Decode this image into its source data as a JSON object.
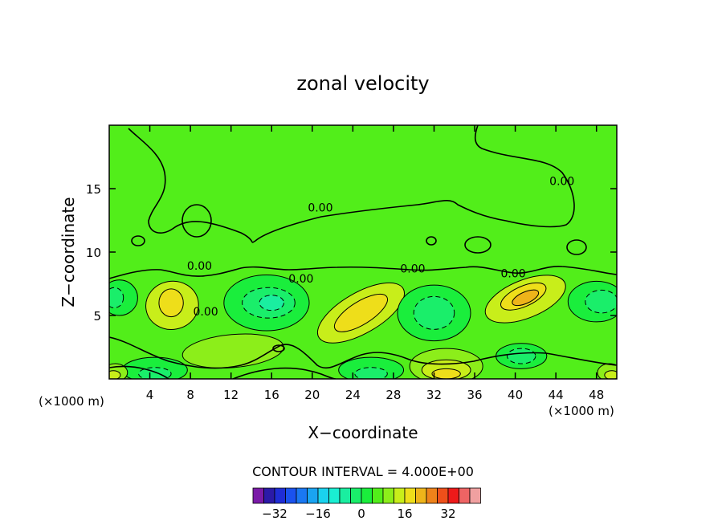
{
  "chart_data": {
    "type": "contour",
    "title": "zonal velocity",
    "xlabel": "X−coordinate",
    "ylabel": "Z−coordinate",
    "x_unit_left": "(×1000 m)",
    "x_unit_right": "(×1000 m)",
    "xlim": [
      0,
      50
    ],
    "ylim": [
      0,
      20
    ],
    "x_ticks": [
      4,
      8,
      12,
      16,
      20,
      24,
      28,
      32,
      36,
      40,
      44,
      48
    ],
    "x_tick_labels": [
      "4",
      "8",
      "12",
      "16",
      "20",
      "24",
      "28",
      "32",
      "36",
      "40",
      "44",
      "48"
    ],
    "y_ticks": [
      5,
      10,
      15
    ],
    "y_tick_labels": [
      "5",
      "10",
      "15"
    ],
    "background_level": 4,
    "contour_label": "0.00",
    "contour_label_positions": [
      [
        20.8,
        13.2
      ],
      [
        8.9,
        8.6
      ],
      [
        18.9,
        7.6
      ],
      [
        29.9,
        8.4
      ],
      [
        39.8,
        8.0
      ],
      [
        44.6,
        15.3
      ],
      [
        9.5,
        5.0
      ]
    ],
    "contour_interval_text": "CONTOUR INTERVAL = 4.000E+00",
    "colorbar": {
      "levels": [
        -36,
        -32,
        -28,
        -24,
        -20,
        -16,
        -12,
        -8,
        -4,
        0,
        4,
        8,
        12,
        16,
        20,
        24,
        28,
        32,
        36
      ],
      "colors": [
        "#7a1aa8",
        "#2b1aa8",
        "#1f2dd6",
        "#1a52ee",
        "#1a78f2",
        "#1aa4f2",
        "#1ad2ee",
        "#1aeed2",
        "#1aeea0",
        "#1aee6a",
        "#1aee3c",
        "#52ee1a",
        "#8cee1a",
        "#c8ee1a",
        "#eede1a",
        "#eeb41a",
        "#ee821a",
        "#ee501a",
        "#ee1a1a",
        "#ee6464",
        "#f0a0a0"
      ],
      "tick_labels": [
        "−32",
        "−16",
        "0",
        "16",
        "32"
      ],
      "tick_values": [
        -32,
        -16,
        0,
        16,
        32
      ]
    },
    "features": [
      {
        "kind": "ellipse",
        "level": 12,
        "cx": 6.2,
        "cy": 5.8,
        "rx": 2.6,
        "ry": 1.9,
        "rot": -10
      },
      {
        "kind": "ellipse",
        "level": 16,
        "cx": 6.1,
        "cy": 6.0,
        "rx": 1.2,
        "ry": 1.1,
        "rot": 0
      },
      {
        "kind": "ellipse",
        "level": 12,
        "cx": 24.8,
        "cy": 5.2,
        "rx": 4.8,
        "ry": 1.6,
        "rot": -30
      },
      {
        "kind": "ellipse",
        "level": 16,
        "cx": 24.8,
        "cy": 5.2,
        "rx": 3.0,
        "ry": 0.9,
        "rot": -32
      },
      {
        "kind": "ellipse",
        "level": 12,
        "cx": 41.0,
        "cy": 6.3,
        "rx": 4.2,
        "ry": 1.5,
        "rot": -22
      },
      {
        "kind": "ellipse",
        "level": 16,
        "cx": 40.8,
        "cy": 6.5,
        "rx": 2.4,
        "ry": 0.8,
        "rot": -24
      },
      {
        "kind": "ellipse",
        "level": 20,
        "cx": 41.0,
        "cy": 6.4,
        "rx": 1.4,
        "ry": 0.45,
        "rot": -24
      },
      {
        "kind": "ellipse",
        "level": 0,
        "cx": 15.5,
        "cy": 6.0,
        "rx": 4.2,
        "ry": 2.2,
        "rot": 0
      },
      {
        "kind": "ellipse",
        "level": -4,
        "cx": 15.7,
        "cy": 6.0,
        "rx": 2.6,
        "ry": 1.2,
        "rot": 0
      },
      {
        "kind": "ellipse",
        "level": -8,
        "cx": 16.0,
        "cy": 6.0,
        "rx": 1.2,
        "ry": 0.6,
        "rot": 0
      },
      {
        "kind": "ellipse",
        "level": 0,
        "cx": 32.0,
        "cy": 5.2,
        "rx": 3.6,
        "ry": 2.2,
        "rot": 0
      },
      {
        "kind": "ellipse",
        "level": -4,
        "cx": 32.0,
        "cy": 5.2,
        "rx": 2.0,
        "ry": 1.3,
        "rot": 0
      },
      {
        "kind": "ellipse",
        "level": 0,
        "cx": 48.0,
        "cy": 6.1,
        "rx": 2.8,
        "ry": 1.6,
        "rot": 0
      },
      {
        "kind": "ellipse",
        "level": -4,
        "cx": 48.5,
        "cy": 6.1,
        "rx": 1.6,
        "ry": 0.9,
        "rot": 0
      },
      {
        "kind": "ellipse",
        "level": 0,
        "cx": 1.0,
        "cy": 6.4,
        "rx": 1.8,
        "ry": 1.4,
        "rot": 0
      },
      {
        "kind": "ellipse",
        "level": -4,
        "cx": 0.5,
        "cy": 6.4,
        "rx": 0.9,
        "ry": 0.8,
        "rot": 0
      },
      {
        "kind": "ellipse",
        "level": 0,
        "cx": 4.5,
        "cy": 0.7,
        "rx": 3.2,
        "ry": 1.0,
        "rot": 0
      },
      {
        "kind": "ellipse",
        "level": -4,
        "cx": 4.5,
        "cy": 0.4,
        "rx": 1.6,
        "ry": 0.5,
        "rot": 0
      },
      {
        "kind": "ellipse",
        "level": 0,
        "cx": 25.8,
        "cy": 0.7,
        "rx": 3.2,
        "ry": 1.0,
        "rot": 0
      },
      {
        "kind": "ellipse",
        "level": -4,
        "cx": 25.8,
        "cy": 0.4,
        "rx": 1.6,
        "ry": 0.5,
        "rot": 0
      },
      {
        "kind": "ellipse",
        "level": 0,
        "cx": 40.6,
        "cy": 1.8,
        "rx": 2.5,
        "ry": 1.0,
        "rot": 0
      },
      {
        "kind": "ellipse",
        "level": -4,
        "cx": 40.6,
        "cy": 1.8,
        "rx": 1.4,
        "ry": 0.6,
        "rot": 0
      },
      {
        "kind": "ellipse",
        "level": 8,
        "cx": 33.2,
        "cy": 1.0,
        "rx": 3.6,
        "ry": 1.4,
        "rot": 0
      },
      {
        "kind": "ellipse",
        "level": 12,
        "cx": 33.2,
        "cy": 0.7,
        "rx": 2.4,
        "ry": 0.8,
        "rot": 0
      },
      {
        "kind": "ellipse",
        "level": 16,
        "cx": 33.2,
        "cy": 0.4,
        "rx": 1.4,
        "ry": 0.4,
        "rot": 0
      },
      {
        "kind": "ellipse",
        "level": 8,
        "cx": 12.2,
        "cy": 2.2,
        "rx": 5.0,
        "ry": 1.3,
        "rot": -5
      },
      {
        "kind": "ellipse",
        "level": 8,
        "cx": 0.6,
        "cy": 0.5,
        "rx": 1.2,
        "ry": 0.7,
        "rot": 0
      },
      {
        "kind": "ellipse",
        "level": 12,
        "cx": 0.4,
        "cy": 0.3,
        "rx": 0.7,
        "ry": 0.35,
        "rot": 0
      },
      {
        "kind": "ellipse",
        "level": 8,
        "cx": 49.3,
        "cy": 0.5,
        "rx": 1.2,
        "ry": 0.7,
        "rot": 0
      },
      {
        "kind": "ellipse",
        "level": 12,
        "cx": 49.5,
        "cy": 0.3,
        "rx": 0.7,
        "ry": 0.35,
        "rot": 0
      }
    ]
  }
}
